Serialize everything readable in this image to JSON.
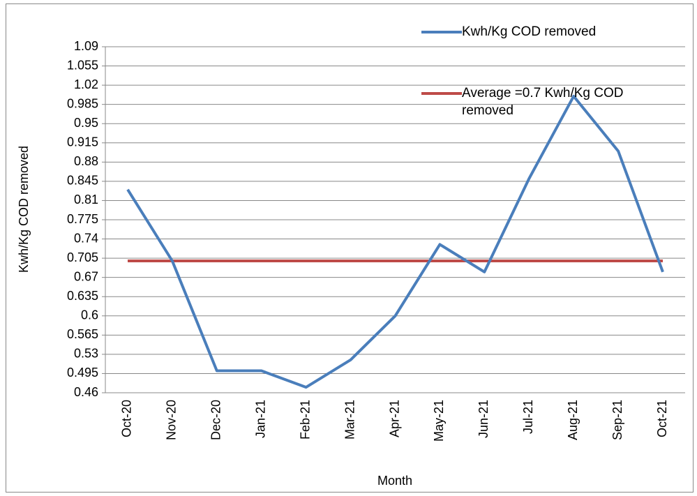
{
  "chart_data": {
    "type": "line",
    "x_label": "Month",
    "y_label": "Kwh/Kg COD removed",
    "categories": [
      "Oct-20",
      "Nov-20",
      "Dec-20",
      "Jan-21",
      "Feb-21",
      "Mar-21",
      "Apr-21",
      "May-21",
      "Jun-21",
      "Jul-21",
      "Aug-21",
      "Sep-21",
      "Oct-21"
    ],
    "series": [
      {
        "name": "Kwh/Kg COD removed",
        "color": "#4a7ebb",
        "values": [
          0.83,
          0.7,
          0.5,
          0.5,
          0.47,
          0.52,
          0.6,
          0.73,
          0.68,
          0.85,
          1.0,
          0.9,
          0.68
        ]
      },
      {
        "name": "Average =0.7 Kwh/Kg COD removed",
        "color": "#be4b48",
        "values": [
          0.7,
          0.7,
          0.7,
          0.7,
          0.7,
          0.7,
          0.7,
          0.7,
          0.7,
          0.7,
          0.7,
          0.7,
          0.7
        ]
      }
    ],
    "ylim": [
      0.46,
      1.09
    ],
    "yticks": [
      0.46,
      0.495,
      0.53,
      0.565,
      0.6,
      0.635,
      0.67,
      0.705,
      0.74,
      0.775,
      0.81,
      0.845,
      0.88,
      0.915,
      0.95,
      0.985,
      1.02,
      1.055,
      1.09
    ],
    "grid": true,
    "legend": "upper right"
  }
}
